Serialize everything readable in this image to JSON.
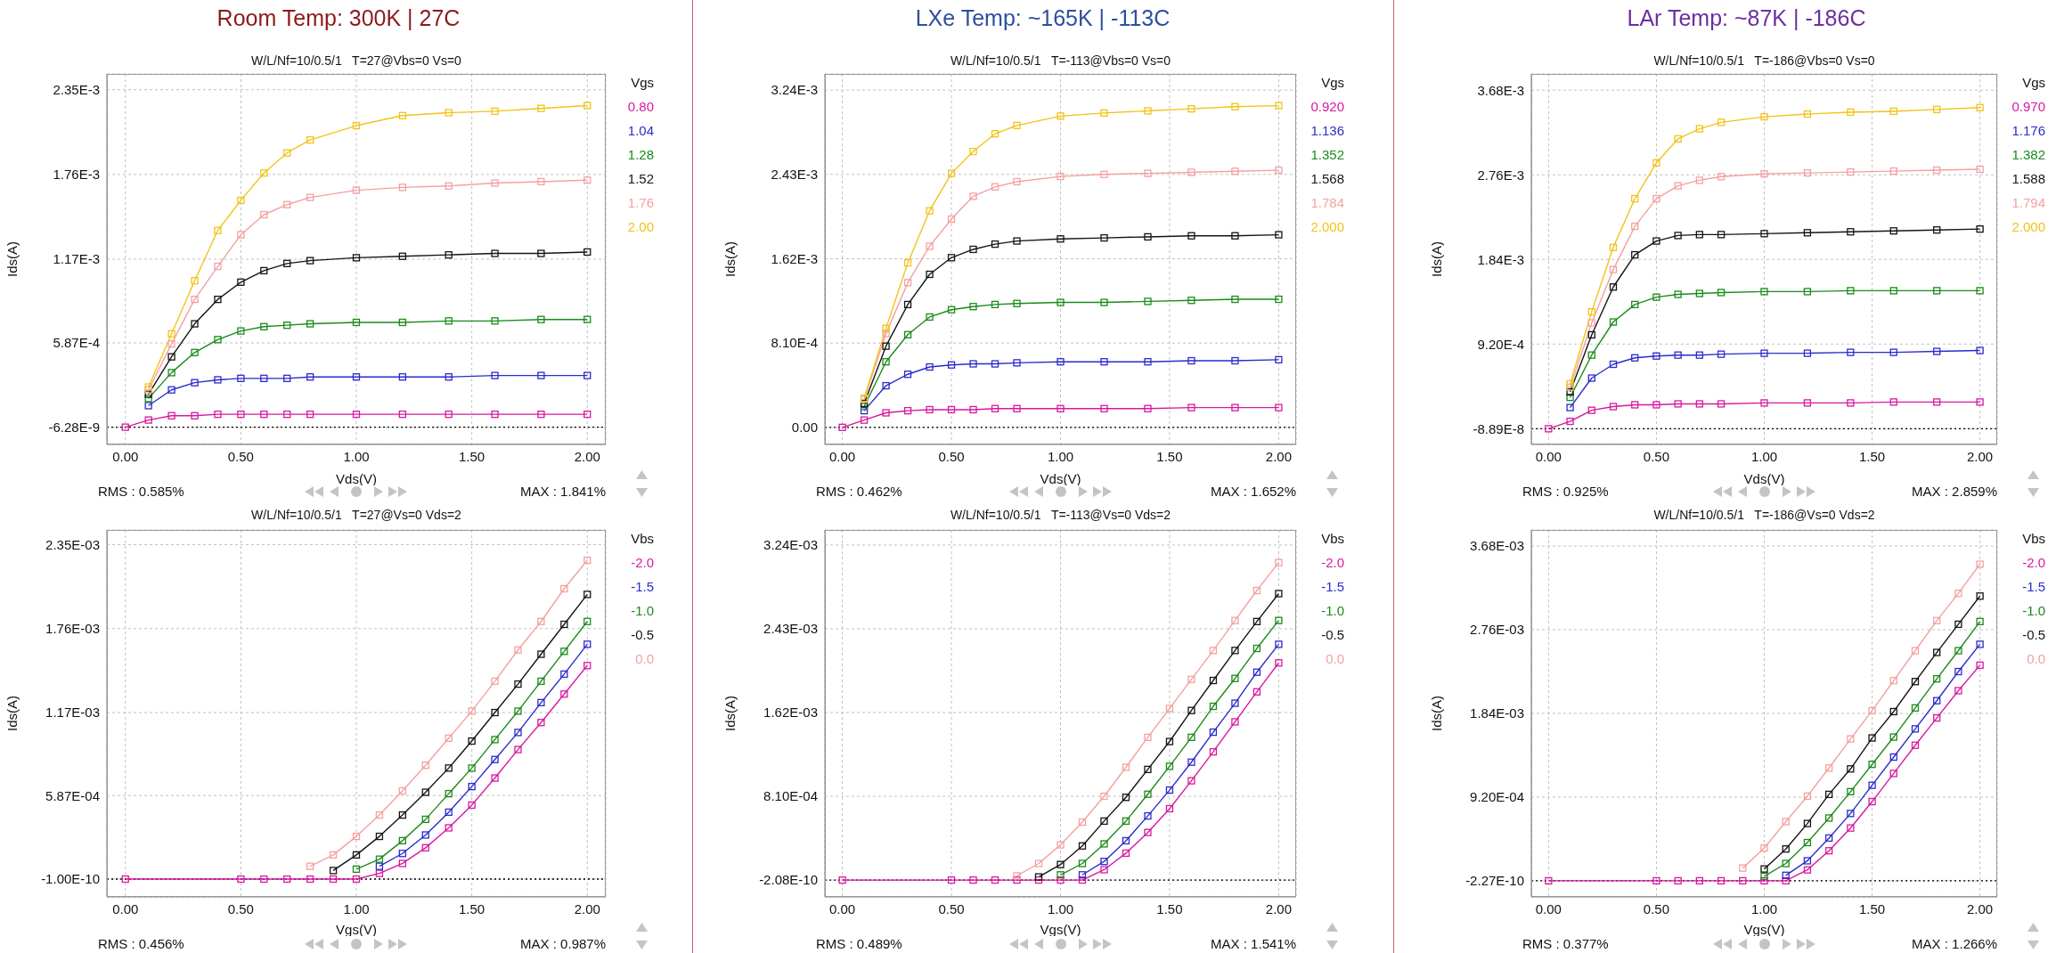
{
  "chart_data": [
    {
      "type": "line",
      "title": "Room Temp: 300K | 27C",
      "subtitle": "W/L/Nf=10/0.5/1   T=27@Vbs=0 Vs=0",
      "xlabel": "Vds(V)",
      "ylabel": "Ids(A)",
      "legend_title": "Vgs",
      "legend": "right",
      "grid": true,
      "marker": "square",
      "x": [
        0,
        0.1,
        0.2,
        0.3,
        0.4,
        0.5,
        0.6,
        0.7,
        0.8,
        1.0,
        1.2,
        1.4,
        1.6,
        1.8,
        2.0
      ],
      "xlim": [
        -0.08,
        2.08
      ],
      "xticks": [
        {
          "value": 0,
          "label": "0.00"
        },
        {
          "value": 0.5,
          "label": "0.50"
        },
        {
          "value": 1,
          "label": "1.00"
        },
        {
          "value": 1.5,
          "label": "1.50"
        },
        {
          "value": 2,
          "label": "2.00"
        }
      ],
      "ylim": [
        -0.00012,
        0.00246
      ],
      "yticks": [
        {
          "value": -6.28e-09,
          "label": "-6.28E-9"
        },
        {
          "value": 0.000587,
          "label": "5.87E-4"
        },
        {
          "value": 0.00117,
          "label": "1.17E-3"
        },
        {
          "value": 0.00176,
          "label": "1.76E-3"
        },
        {
          "value": 0.00235,
          "label": "2.35E-3"
        }
      ],
      "series": [
        {
          "name": "0.80",
          "color": "#d8189f",
          "values": [
            0,
            5e-05,
            8e-05,
            8e-05,
            9e-05,
            9e-05,
            9e-05,
            9e-05,
            9e-05,
            9e-05,
            9e-05,
            9e-05,
            9e-05,
            9e-05,
            9e-05
          ]
        },
        {
          "name": "1.04",
          "color": "#2b2bcc",
          "values": [
            null,
            0.00015,
            0.00026,
            0.00031,
            0.00033,
            0.00034,
            0.00034,
            0.00034,
            0.00035,
            0.00035,
            0.00035,
            0.00035,
            0.00036,
            0.00036,
            0.00036
          ]
        },
        {
          "name": "1.28",
          "color": "#1a8a1a",
          "values": [
            null,
            0.0002,
            0.00038,
            0.00052,
            0.00061,
            0.00067,
            0.0007,
            0.00071,
            0.00072,
            0.00073,
            0.00073,
            0.00074,
            0.00074,
            0.00075,
            0.00075
          ]
        },
        {
          "name": "1.52",
          "color": "#141414",
          "values": [
            null,
            0.00023,
            0.00049,
            0.00072,
            0.00089,
            0.00101,
            0.00109,
            0.00114,
            0.00116,
            0.00118,
            0.00119,
            0.0012,
            0.00121,
            0.00121,
            0.00122
          ]
        },
        {
          "name": "1.76",
          "color": "#f4a0a0",
          "values": [
            null,
            0.00026,
            0.00058,
            0.00089,
            0.00112,
            0.00134,
            0.00148,
            0.00155,
            0.0016,
            0.00165,
            0.00167,
            0.00168,
            0.0017,
            0.00171,
            0.00172
          ]
        },
        {
          "name": "2.00",
          "color": "#f2c318",
          "values": [
            null,
            0.00028,
            0.00065,
            0.00102,
            0.00137,
            0.00158,
            0.00177,
            0.00191,
            0.002,
            0.0021,
            0.00217,
            0.00219,
            0.0022,
            0.00222,
            0.00224
          ]
        }
      ],
      "ref_lines": [
        {
          "axis": "y",
          "value": 0,
          "color": "#000000",
          "line_style": "dotted"
        }
      ],
      "annotations": [
        "RMS : 0.585%",
        "MAX : 1.841%"
      ]
    },
    {
      "type": "line",
      "title": "LXe Temp: ~165K | -113C",
      "subtitle": "W/L/Nf=10/0.5/1   T=-113@Vbs=0 Vs=0",
      "xlabel": "Vds(V)",
      "ylabel": "Ids(A)",
      "legend_title": "Vgs",
      "legend": "right",
      "grid": true,
      "marker": "square",
      "x": [
        0,
        0.1,
        0.2,
        0.3,
        0.4,
        0.5,
        0.6,
        0.7,
        0.8,
        1.0,
        1.2,
        1.4,
        1.6,
        1.8,
        2.0
      ],
      "xlim": [
        -0.08,
        2.08
      ],
      "xticks": [
        {
          "value": 0,
          "label": "0.00"
        },
        {
          "value": 0.5,
          "label": "0.50"
        },
        {
          "value": 1,
          "label": "1.00"
        },
        {
          "value": 1.5,
          "label": "1.50"
        },
        {
          "value": 2,
          "label": "2.00"
        }
      ],
      "ylim": [
        -0.000164,
        0.003395
      ],
      "yticks": [
        {
          "value": 0,
          "label": "0.00"
        },
        {
          "value": 0.00081,
          "label": "8.10E-4"
        },
        {
          "value": 0.00162,
          "label": "1.62E-3"
        },
        {
          "value": 0.00243,
          "label": "2.43E-3"
        },
        {
          "value": 0.00324,
          "label": "3.24E-3"
        }
      ],
      "series": [
        {
          "name": "0.920",
          "color": "#d8189f",
          "values": [
            0,
            7e-05,
            0.00014,
            0.00016,
            0.00017,
            0.00017,
            0.00017,
            0.00018,
            0.00018,
            0.00018,
            0.00018,
            0.00018,
            0.00019,
            0.00019,
            0.00019
          ]
        },
        {
          "name": "1.136",
          "color": "#2b2bcc",
          "values": [
            null,
            0.00016,
            0.0004,
            0.00051,
            0.00058,
            0.0006,
            0.00061,
            0.00061,
            0.00062,
            0.00063,
            0.00063,
            0.00063,
            0.00064,
            0.00064,
            0.00065
          ]
        },
        {
          "name": "1.352",
          "color": "#1a8a1a",
          "values": [
            null,
            0.0002,
            0.00063,
            0.00089,
            0.00106,
            0.00113,
            0.00116,
            0.00118,
            0.00119,
            0.0012,
            0.0012,
            0.00121,
            0.00122,
            0.00123,
            0.00123
          ]
        },
        {
          "name": "1.568",
          "color": "#141414",
          "values": [
            null,
            0.00023,
            0.00078,
            0.00118,
            0.00147,
            0.00163,
            0.00171,
            0.00176,
            0.00179,
            0.00181,
            0.00182,
            0.00183,
            0.00184,
            0.00184,
            0.00185
          ]
        },
        {
          "name": "1.784",
          "color": "#f4a0a0",
          "values": [
            null,
            0.00027,
            0.0009,
            0.00139,
            0.00174,
            0.002,
            0.00222,
            0.00231,
            0.00236,
            0.00241,
            0.00243,
            0.00244,
            0.00245,
            0.00246,
            0.00247
          ]
        },
        {
          "name": "2.000",
          "color": "#f2c318",
          "values": [
            null,
            0.00028,
            0.00095,
            0.00158,
            0.00208,
            0.00244,
            0.00265,
            0.00282,
            0.0029,
            0.00299,
            0.00302,
            0.00304,
            0.00306,
            0.00308,
            0.00309
          ]
        }
      ],
      "ref_lines": [
        {
          "axis": "y",
          "value": 0,
          "color": "#000000",
          "line_style": "dotted"
        }
      ],
      "annotations": [
        "RMS : 0.462%",
        "MAX : 1.652%"
      ]
    },
    {
      "type": "line",
      "title": "LAr Temp: ~87K | -186C",
      "subtitle": "W/L/Nf=10/0.5/1   T=-186@Vbs=0 Vs=0",
      "xlabel": "Vds(V)",
      "ylabel": "Ids(A)",
      "legend_title": "Vgs",
      "legend": "right",
      "grid": true,
      "marker": "square",
      "x": [
        0,
        0.1,
        0.2,
        0.3,
        0.4,
        0.5,
        0.6,
        0.7,
        0.8,
        1.0,
        1.2,
        1.4,
        1.6,
        1.8,
        2.0
      ],
      "xlim": [
        -0.08,
        2.08
      ],
      "xticks": [
        {
          "value": 0,
          "label": "0.00"
        },
        {
          "value": 0.5,
          "label": "0.50"
        },
        {
          "value": 1,
          "label": "1.00"
        },
        {
          "value": 1.5,
          "label": "1.50"
        },
        {
          "value": 2,
          "label": "2.00"
        }
      ],
      "ylim": [
        -0.000171,
        0.003856
      ],
      "yticks": [
        {
          "value": -8.89e-08,
          "label": "-8.89E-8"
        },
        {
          "value": 0.00092,
          "label": "9.20E-4"
        },
        {
          "value": 0.00184,
          "label": "1.84E-3"
        },
        {
          "value": 0.00276,
          "label": "2.76E-3"
        },
        {
          "value": 0.00368,
          "label": "3.68E-3"
        }
      ],
      "series": [
        {
          "name": "0.970",
          "color": "#d8189f",
          "values": [
            0,
            8e-05,
            0.0002,
            0.00024,
            0.00026,
            0.00026,
            0.00027,
            0.00027,
            0.00027,
            0.00028,
            0.00028,
            0.00028,
            0.00029,
            0.00029,
            0.00029
          ]
        },
        {
          "name": "1.176",
          "color": "#2b2bcc",
          "values": [
            null,
            0.00023,
            0.00055,
            0.0007,
            0.00077,
            0.00079,
            0.0008,
            0.0008,
            0.00081,
            0.00082,
            0.00082,
            0.00083,
            0.00083,
            0.00084,
            0.00085
          ]
        },
        {
          "name": "1.382",
          "color": "#1a8a1a",
          "values": [
            null,
            0.00034,
            0.0008,
            0.00116,
            0.00135,
            0.00143,
            0.00146,
            0.00147,
            0.00148,
            0.00149,
            0.00149,
            0.0015,
            0.0015,
            0.0015,
            0.0015
          ]
        },
        {
          "name": "1.588",
          "color": "#141414",
          "values": [
            null,
            0.0004,
            0.00102,
            0.00154,
            0.00189,
            0.00204,
            0.0021,
            0.00211,
            0.00211,
            0.00212,
            0.00213,
            0.00214,
            0.00215,
            0.00216,
            0.00217
          ]
        },
        {
          "name": "1.794",
          "color": "#f4a0a0",
          "values": [
            null,
            0.00045,
            0.00115,
            0.00173,
            0.0022,
            0.0025,
            0.00264,
            0.0027,
            0.00274,
            0.00277,
            0.00278,
            0.00279,
            0.0028,
            0.00281,
            0.00282
          ]
        },
        {
          "name": "2.000",
          "color": "#f2c318",
          "values": [
            null,
            0.00049,
            0.00127,
            0.00197,
            0.0025,
            0.00289,
            0.00315,
            0.00326,
            0.00333,
            0.00339,
            0.00342,
            0.00344,
            0.00345,
            0.00347,
            0.00349
          ]
        }
      ],
      "ref_lines": [
        {
          "axis": "y",
          "value": 0,
          "color": "#000000",
          "line_style": "dotted"
        }
      ],
      "annotations": [
        "RMS : 0.925%",
        "MAX : 2.859%"
      ]
    },
    {
      "type": "line",
      "subtitle": "W/L/Nf=10/0.5/1   T=27@Vs=0 Vds=2",
      "xlabel": "Vgs(V)",
      "ylabel": "Ids(A)",
      "legend_title": "Vbs",
      "legend": "right",
      "grid": true,
      "marker": "square",
      "x": [
        0,
        0.5,
        0.6,
        0.7,
        0.8,
        0.9,
        1.0,
        1.1,
        1.2,
        1.3,
        1.4,
        1.5,
        1.6,
        1.7,
        1.8,
        1.9,
        2.0
      ],
      "xlim": [
        -0.08,
        2.08
      ],
      "xticks": [
        {
          "value": 0,
          "label": "0.00"
        },
        {
          "value": 0.5,
          "label": "0.50"
        },
        {
          "value": 1,
          "label": "1.00"
        },
        {
          "value": 1.5,
          "label": "1.50"
        },
        {
          "value": 2,
          "label": "2.00"
        }
      ],
      "ylim": [
        -0.000125,
        0.002453
      ],
      "yticks": [
        {
          "value": -1e-10,
          "label": "-1.00E-10"
        },
        {
          "value": 0.000587,
          "label": "5.87E-04"
        },
        {
          "value": 0.00117,
          "label": "1.17E-03"
        },
        {
          "value": 0.00176,
          "label": "1.76E-03"
        },
        {
          "value": 0.00235,
          "label": "2.35E-03"
        }
      ],
      "series": [
        {
          "name": "-2.0",
          "color": "#d8189f",
          "values": [
            0,
            0,
            0,
            0,
            0,
            0,
            0,
            4e-05,
            0.00011,
            0.00022,
            0.00036,
            0.00052,
            0.00071,
            0.00091,
            0.0011,
            0.0013,
            0.0015
          ]
        },
        {
          "name": "-1.5",
          "color": "#2b2bcc",
          "values": [
            null,
            null,
            null,
            null,
            null,
            null,
            null,
            9e-05,
            0.00018,
            0.00031,
            0.00047,
            0.00065,
            0.00084,
            0.00103,
            0.00124,
            0.00144,
            0.00165
          ]
        },
        {
          "name": "-1.0",
          "color": "#1a8a1a",
          "values": [
            null,
            null,
            null,
            null,
            null,
            null,
            7e-05,
            0.00014,
            0.00027,
            0.00042,
            0.0006,
            0.00078,
            0.00098,
            0.00118,
            0.00139,
            0.0016,
            0.00181
          ]
        },
        {
          "name": "-0.5",
          "color": "#141414",
          "values": [
            null,
            null,
            null,
            null,
            null,
            6e-05,
            0.00017,
            0.0003,
            0.00045,
            0.00061,
            0.00078,
            0.00097,
            0.00117,
            0.00137,
            0.00158,
            0.00179,
            0.002
          ]
        },
        {
          "name": "0.0",
          "color": "#f4a0a0",
          "values": [
            null,
            null,
            null,
            null,
            9e-05,
            0.00017,
            0.0003,
            0.00045,
            0.00062,
            0.0008,
            0.00099,
            0.00118,
            0.00139,
            0.00161,
            0.00181,
            0.00204,
            0.00224
          ]
        }
      ],
      "ref_lines": [
        {
          "axis": "y",
          "value": 0,
          "color": "#000000",
          "line_style": "dotted"
        }
      ],
      "annotations": [
        "RMS : 0.456%",
        "MAX : 0.987%"
      ]
    },
    {
      "type": "line",
      "subtitle": "W/L/Nf=10/0.5/1   T=-113@Vs=0 Vds=2",
      "xlabel": "Vgs(V)",
      "ylabel": "Ids(A)",
      "legend_title": "Vbs",
      "legend": "right",
      "grid": true,
      "marker": "square",
      "x": [
        0,
        0.5,
        0.6,
        0.7,
        0.8,
        0.9,
        1.0,
        1.1,
        1.2,
        1.3,
        1.4,
        1.5,
        1.6,
        1.7,
        1.8,
        1.9,
        2.0
      ],
      "xlim": [
        -0.08,
        2.08
      ],
      "xticks": [
        {
          "value": 0,
          "label": "0.00"
        },
        {
          "value": 0.5,
          "label": "0.50"
        },
        {
          "value": 1,
          "label": "1.00"
        },
        {
          "value": 1.5,
          "label": "1.50"
        },
        {
          "value": 2,
          "label": "2.00"
        }
      ],
      "ylim": [
        -0.000163,
        0.003386
      ],
      "yticks": [
        {
          "value": -2.08e-10,
          "label": "-2.08E-10"
        },
        {
          "value": 0.00081,
          "label": "8.10E-04"
        },
        {
          "value": 0.00162,
          "label": "1.62E-03"
        },
        {
          "value": 0.00243,
          "label": "2.43E-03"
        },
        {
          "value": 0.00324,
          "label": "3.24E-03"
        }
      ],
      "series": [
        {
          "name": "-2.0",
          "color": "#d8189f",
          "values": [
            0,
            0,
            0,
            0,
            0,
            0,
            0,
            0,
            0.0001,
            0.00026,
            0.00046,
            0.00069,
            0.00096,
            0.00124,
            0.00153,
            0.00182,
            0.0021
          ]
        },
        {
          "name": "-1.5",
          "color": "#2b2bcc",
          "values": [
            null,
            null,
            null,
            null,
            null,
            null,
            null,
            5e-05,
            0.00018,
            0.00038,
            0.00062,
            0.00087,
            0.00114,
            0.00143,
            0.00171,
            0.00201,
            0.00228
          ]
        },
        {
          "name": "-1.0",
          "color": "#1a8a1a",
          "values": [
            null,
            null,
            null,
            null,
            null,
            null,
            5e-05,
            0.00016,
            0.00035,
            0.00057,
            0.00083,
            0.0011,
            0.00138,
            0.00168,
            0.00195,
            0.00224,
            0.00251
          ]
        },
        {
          "name": "-0.5",
          "color": "#141414",
          "values": [
            null,
            null,
            null,
            null,
            null,
            3e-05,
            0.00015,
            0.00033,
            0.00057,
            0.0008,
            0.00107,
            0.00134,
            0.00164,
            0.00193,
            0.00222,
            0.0025,
            0.00277
          ]
        },
        {
          "name": "0.0",
          "color": "#f4a0a0",
          "values": [
            null,
            null,
            null,
            null,
            4e-05,
            0.00016,
            0.00034,
            0.00056,
            0.00081,
            0.00109,
            0.00138,
            0.00166,
            0.00194,
            0.00222,
            0.00251,
            0.0028,
            0.00307
          ]
        }
      ],
      "ref_lines": [
        {
          "axis": "y",
          "value": 0,
          "color": "#000000",
          "line_style": "dotted"
        }
      ],
      "annotations": [
        "RMS : 0.489%",
        "MAX : 1.541%"
      ]
    },
    {
      "type": "line",
      "subtitle": "W/L/Nf=10/0.5/1   T=-186@Vs=0 Vds=2",
      "xlabel": "Vgs(V)",
      "ylabel": "Ids(A)",
      "legend_title": "Vbs",
      "legend": "right",
      "grid": true,
      "marker": "square",
      "x": [
        0,
        0.5,
        0.6,
        0.7,
        0.8,
        0.9,
        1.0,
        1.1,
        1.2,
        1.3,
        1.4,
        1.5,
        1.6,
        1.7,
        1.8,
        1.9,
        2.0
      ],
      "xlim": [
        -0.08,
        2.08
      ],
      "xticks": [
        {
          "value": 0,
          "label": "0.00"
        },
        {
          "value": 0.5,
          "label": "0.50"
        },
        {
          "value": 1,
          "label": "1.00"
        },
        {
          "value": 1.5,
          "label": "1.50"
        },
        {
          "value": 2,
          "label": "2.00"
        }
      ],
      "ylim": [
        -0.000177,
        0.003857
      ],
      "yticks": [
        {
          "value": -2.27e-10,
          "label": "-2.27E-10"
        },
        {
          "value": 0.00092,
          "label": "9.20E-04"
        },
        {
          "value": 0.00184,
          "label": "1.84E-03"
        },
        {
          "value": 0.00276,
          "label": "2.76E-03"
        },
        {
          "value": 0.00368,
          "label": "3.68E-03"
        }
      ],
      "series": [
        {
          "name": "-2.0",
          "color": "#d8189f",
          "values": [
            0,
            0,
            0,
            0,
            0,
            0,
            0,
            0,
            0.00012,
            0.00033,
            0.00058,
            0.00087,
            0.00118,
            0.00149,
            0.00179,
            0.00209,
            0.00237
          ]
        },
        {
          "name": "-1.5",
          "color": "#2b2bcc",
          "values": [
            null,
            null,
            null,
            null,
            null,
            null,
            null,
            6e-05,
            0.00022,
            0.00047,
            0.00074,
            0.00105,
            0.00136,
            0.00167,
            0.00198,
            0.0023,
            0.0026
          ]
        },
        {
          "name": "-1.0",
          "color": "#1a8a1a",
          "values": [
            null,
            null,
            null,
            null,
            null,
            null,
            5e-05,
            0.00019,
            0.00042,
            0.00069,
            0.00098,
            0.00128,
            0.00158,
            0.0019,
            0.00222,
            0.00253,
            0.00285
          ]
        },
        {
          "name": "-0.5",
          "color": "#141414",
          "values": [
            null,
            null,
            null,
            null,
            null,
            null,
            0.00013,
            0.00035,
            0.00063,
            0.00095,
            0.00123,
            0.00157,
            0.00186,
            0.00219,
            0.00251,
            0.00282,
            0.00313
          ]
        },
        {
          "name": "0.0",
          "color": "#f4a0a0",
          "values": [
            null,
            null,
            null,
            null,
            null,
            0.00014,
            0.00036,
            0.00065,
            0.00093,
            0.00124,
            0.00156,
            0.00187,
            0.0022,
            0.00253,
            0.00286,
            0.00316,
            0.00348
          ]
        }
      ],
      "ref_lines": [
        {
          "axis": "y",
          "value": 0,
          "color": "#000000",
          "line_style": "dotted"
        }
      ],
      "annotations": [
        "RMS : 0.377%",
        "MAX : 1.266%"
      ]
    }
  ]
}
